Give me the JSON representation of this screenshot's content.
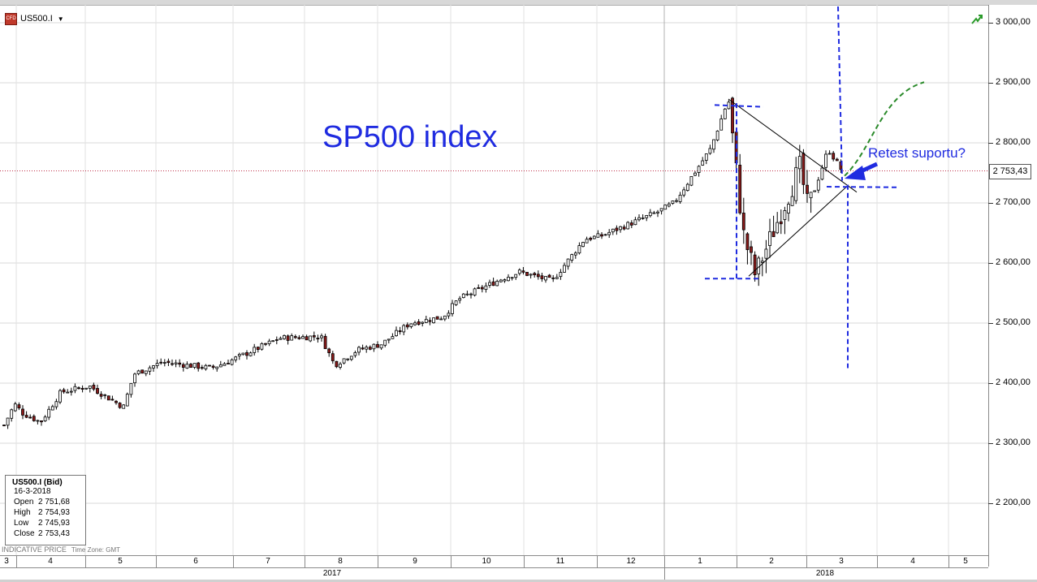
{
  "window": {
    "symbol": "US500.I",
    "badge": "CFD"
  },
  "info_box": {
    "title": "US500.I (Bid)",
    "date": "16-3-2018",
    "rows": [
      {
        "label": "Open",
        "value": "2 751,68"
      },
      {
        "label": "High",
        "value": "2 754,93"
      },
      {
        "label": "Low",
        "value": "2 745,93"
      },
      {
        "label": "Close",
        "value": "2 753,43"
      }
    ]
  },
  "footer": {
    "indicative": "INDICATIVE PRICE",
    "timezone": "Time Zone: GMT"
  },
  "chart_data": {
    "type": "candlestick",
    "title": "SP500 index",
    "annotation": "Retest suportu?",
    "current_price_label": "2 753,43",
    "current_price": 2753.43,
    "y_axis": {
      "ylim": [
        2100,
        3030
      ],
      "ticks": [
        3000,
        2900,
        2800,
        2700,
        2600,
        2500,
        2400,
        2300,
        2200
      ],
      "tick_labels": [
        "3 000,00",
        "2 900,00",
        "2 800,00",
        "2 700,00",
        "2 600,00",
        "2 500,00",
        "2 400,00",
        "2 300,00",
        "2 200,00"
      ],
      "position": "right"
    },
    "x_axis": {
      "months": [
        "3",
        "4",
        "5",
        "6",
        "7",
        "8",
        "9",
        "10",
        "11",
        "12",
        "1",
        "2",
        "3",
        "4",
        "5"
      ],
      "years": [
        "2017",
        "2018"
      ]
    },
    "grid": true,
    "colors": {
      "up_candle": "#ffffff",
      "down_candle": "#8b1a1a",
      "wick": "#000000",
      "annotation_blue": "#1f2be0",
      "forecast_green": "#2a8a2a",
      "price_line": "#c0304a"
    },
    "series": [
      {
        "kind": "price_path",
        "points": [
          [
            "2017-03",
            2330
          ],
          [
            "2017-03-mid",
            2365
          ],
          [
            "2017-04-start",
            2350
          ],
          [
            "2017-04-mid",
            2335
          ],
          [
            "2017-04-end",
            2385
          ],
          [
            "2017-05-mid",
            2395
          ],
          [
            "2017-05-late",
            2360
          ],
          [
            "2017-05-end",
            2415
          ],
          [
            "2017-06",
            2435
          ],
          [
            "2017-06-end",
            2425
          ],
          [
            "2017-07",
            2435
          ],
          [
            "2017-07-end",
            2475
          ],
          [
            "2017-08-start",
            2478
          ],
          [
            "2017-08-mid",
            2430
          ],
          [
            "2017-08-end",
            2455
          ],
          [
            "2017-09-start",
            2465
          ],
          [
            "2017-09-mid",
            2500
          ],
          [
            "2017-09-end",
            2510
          ],
          [
            "2017-10-start",
            2540
          ],
          [
            "2017-10-end",
            2575
          ],
          [
            "2017-11-start",
            2585
          ],
          [
            "2017-11-mid",
            2570
          ],
          [
            "2017-11-end",
            2640
          ],
          [
            "2017-12-start",
            2645
          ],
          [
            "2017-12-end",
            2685
          ],
          [
            "2018-01-start",
            2700
          ],
          [
            "2018-01-mid",
            2790
          ],
          [
            "2018-01-26",
            2873
          ],
          [
            "2018-02-05",
            2650
          ],
          [
            "2018-02-08",
            2580
          ],
          [
            "2018-02-end",
            2760
          ],
          [
            "2018-03-start",
            2690
          ],
          [
            "2018-03-09",
            2790
          ],
          [
            "2018-03-16",
            2753
          ]
        ]
      }
    ]
  }
}
